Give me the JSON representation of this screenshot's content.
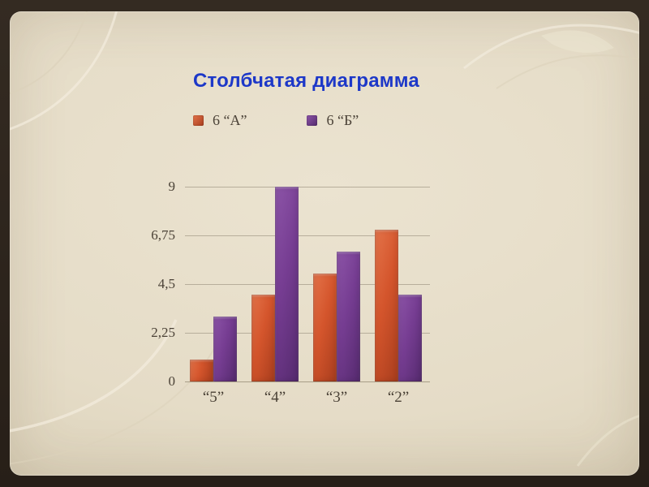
{
  "slide": {
    "title": "Столбчатая диаграмма"
  },
  "chart_data": {
    "type": "bar",
    "title": "Столбчатая диаграмма",
    "categories": [
      "“5”",
      "“4”",
      "“3”",
      "“2”"
    ],
    "series": [
      {
        "name": "6 “А”",
        "values": [
          1,
          4,
          5,
          7
        ],
        "color": "#d4552c",
        "color_light": "#e4744a",
        "color_dark": "#a83d1d"
      },
      {
        "name": "6 “Б”",
        "values": [
          3,
          9,
          6,
          4
        ],
        "color": "#763d92",
        "color_light": "#8d55a8",
        "color_dark": "#552a6e"
      }
    ],
    "ylim": [
      0,
      9
    ],
    "y_ticks": [
      "9",
      "6,75",
      "4,5",
      "2,25",
      "0"
    ],
    "y_tick_values": [
      9,
      6.75,
      4.5,
      2.25,
      0
    ],
    "xlabel": "",
    "ylabel": "",
    "grid": true,
    "legend_position": "top"
  },
  "colors": {
    "title": "#1d38c8",
    "text": "#4b4237",
    "grid": "#b7ae9b",
    "background": "#e5dcc7",
    "frame": "#2a2219",
    "bar_orange": "#d4552c",
    "bar_purple": "#763d92"
  }
}
